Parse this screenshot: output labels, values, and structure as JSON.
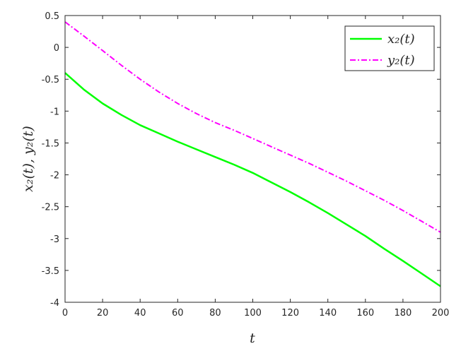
{
  "chart_data": {
    "type": "line",
    "xlabel": "t",
    "ylabel": "x₂(t), y₂(t)",
    "xlim": [
      0,
      200
    ],
    "ylim": [
      -4,
      0.5
    ],
    "x_ticks": [
      0,
      20,
      40,
      60,
      80,
      100,
      120,
      140,
      160,
      180,
      200
    ],
    "y_ticks": [
      0.5,
      0,
      -0.5,
      -1,
      -1.5,
      -2,
      -2.5,
      -3,
      -3.5,
      -4
    ],
    "grid": false,
    "legend_position": "top-right",
    "series": [
      {
        "name": "x₂(t)",
        "color": "#00ff00",
        "style": "solid",
        "x": [
          0,
          10,
          20,
          30,
          40,
          50,
          60,
          70,
          80,
          90,
          100,
          110,
          120,
          130,
          140,
          150,
          160,
          170,
          180,
          190,
          200
        ],
        "y": [
          -0.4,
          -0.66,
          -0.88,
          -1.06,
          -1.22,
          -1.35,
          -1.48,
          -1.6,
          -1.72,
          -1.84,
          -1.97,
          -2.12,
          -2.27,
          -2.43,
          -2.6,
          -2.78,
          -2.96,
          -3.16,
          -3.35,
          -3.55,
          -3.75
        ]
      },
      {
        "name": "y₂(t)",
        "color": "#ff00ff",
        "style": "dashdot",
        "x": [
          0,
          10,
          20,
          30,
          40,
          50,
          60,
          70,
          80,
          90,
          100,
          110,
          120,
          130,
          140,
          150,
          160,
          170,
          180,
          190,
          200
        ],
        "y": [
          0.4,
          0.18,
          -0.05,
          -0.28,
          -0.5,
          -0.7,
          -0.88,
          -1.04,
          -1.18,
          -1.3,
          -1.43,
          -1.56,
          -1.69,
          -1.82,
          -1.96,
          -2.1,
          -2.25,
          -2.4,
          -2.56,
          -2.73,
          -2.9
        ]
      }
    ]
  }
}
